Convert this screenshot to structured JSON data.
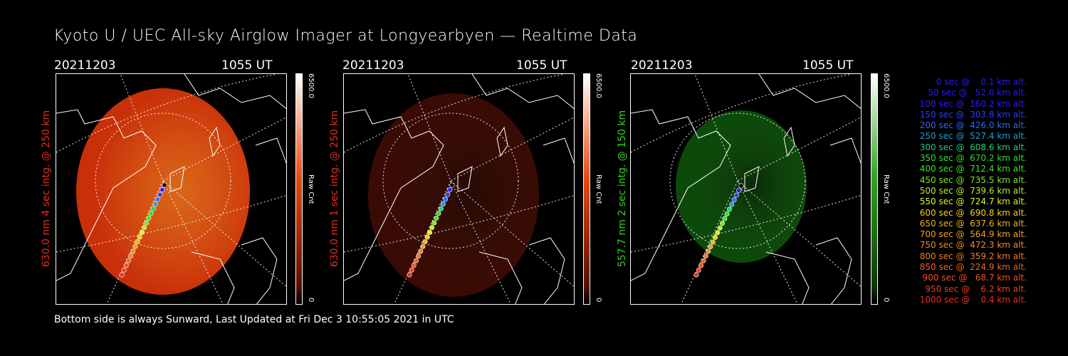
{
  "title": "Kyoto U / UEC All-sky Airglow Imager at Longyearbyen — Realtime Data",
  "panels": [
    {
      "date": "20211203",
      "time": "1055 UT",
      "ylabel": "630.0 nm 4 sec intg. @ 250 km",
      "label_color": "#e0301e",
      "cb_max": "6500.0",
      "cb_unit": "Raw Cnt",
      "cb_min": "0",
      "color_top": "#ffffff",
      "color_mid": "#e84a10",
      "color_bottom": "#5a0f00"
    },
    {
      "date": "20211203",
      "time": "1055 UT",
      "ylabel": "630.0 nm 1 sec intg. @ 250 km",
      "label_color": "#e0301e",
      "cb_max": "6500.0",
      "cb_unit": "Raw Cnt",
      "cb_min": "0",
      "color_top": "#ffffff",
      "color_mid": "#e84a10",
      "color_bottom": "#5a0f00"
    },
    {
      "date": "20211203",
      "time": "1055 UT",
      "ylabel": "557.7 nm 2 sec intg. @ 150 km",
      "label_color": "#32d21e",
      "cb_max": "6500.0",
      "cb_unit": "Raw Cnt",
      "cb_min": "0",
      "color_top": "#ffffff",
      "color_mid": "#2fa51e",
      "color_bottom": "#0c3a08"
    }
  ],
  "footer": "Bottom side is always Sunward, Last Updated at Fri Dec  3 10:55:05 2021 in UTC",
  "legend": [
    {
      "text": "   0 sec @    0.1 km alt.",
      "color": "#2a1aff"
    },
    {
      "text": "  50 sec @   52.0 km alt.",
      "color": "#2a1aff"
    },
    {
      "text": " 100 sec @  160.2 km alt.",
      "color": "#2a1aff"
    },
    {
      "text": " 150 sec @  303.8 km alt.",
      "color": "#2a3aff"
    },
    {
      "text": " 200 sec @  426.0 km alt.",
      "color": "#2a6aff"
    },
    {
      "text": " 250 sec @  527.4 km alt.",
      "color": "#1aa0c8"
    },
    {
      "text": " 300 sec @  608.6 km alt.",
      "color": "#1ecf7a"
    },
    {
      "text": " 350 sec @  670.2 km alt.",
      "color": "#2ae02a"
    },
    {
      "text": " 400 sec @  712.4 km alt.",
      "color": "#3ce81e"
    },
    {
      "text": " 450 sec @  735.5 km alt.",
      "color": "#7ae81e"
    },
    {
      "text": " 500 sec @  739.6 km alt.",
      "color": "#b4f01e"
    },
    {
      "text": " 550 sec @  724.7 km alt.",
      "color": "#e6f01e"
    },
    {
      "text": " 600 sec @  690.8 km alt.",
      "color": "#f0d21e"
    },
    {
      "text": " 650 sec @  637.6 km alt.",
      "color": "#f0b41e"
    },
    {
      "text": " 700 sec @  564.9 km alt.",
      "color": "#f0a01e"
    },
    {
      "text": " 750 sec @  472.3 km alt.",
      "color": "#f08c1e"
    },
    {
      "text": " 800 sec @  359.2 km alt.",
      "color": "#f07a1e"
    },
    {
      "text": " 850 sec @  224.9 km alt.",
      "color": "#f0641e"
    },
    {
      "text": " 900 sec @   68.7 km alt.",
      "color": "#f0501e"
    },
    {
      "text": " 950 sec @    6.2 km alt.",
      "color": "#f03c1e"
    },
    {
      "text": "1000 sec @    0.4 km alt.",
      "color": "#f02a1e"
    }
  ]
}
